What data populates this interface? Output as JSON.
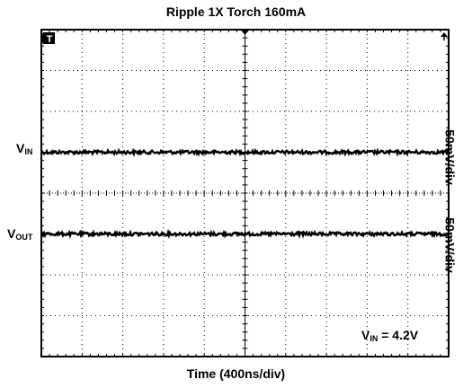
{
  "chart_data": {
    "type": "line",
    "title": "Ripple 1X Torch 160mA",
    "xlabel": "Time (400ns/div)",
    "trigger_marker": "T",
    "series": [
      {
        "name": "VIN",
        "label_main": "V",
        "label_sub": "IN",
        "scale": "50mV/div",
        "level_div": 1.0,
        "noise_div": 0.04
      },
      {
        "name": "VOUT",
        "label_main": "V",
        "label_sub": "OUT",
        "scale": "50mV/div",
        "level_div": -1.0,
        "noise_div": 0.04
      }
    ],
    "annotation": {
      "main": "V",
      "sub": "IN",
      "value": " = 4.2V"
    },
    "grid": {
      "x_divisions": 10,
      "y_divisions": 8,
      "center_ticks": true
    }
  },
  "colors": {
    "trace": "#000000",
    "grid": "#000000",
    "background": "#ffffff"
  },
  "icons": {
    "trigger": "trigger-marker-icon",
    "arrow": "trigger-position-icon"
  }
}
